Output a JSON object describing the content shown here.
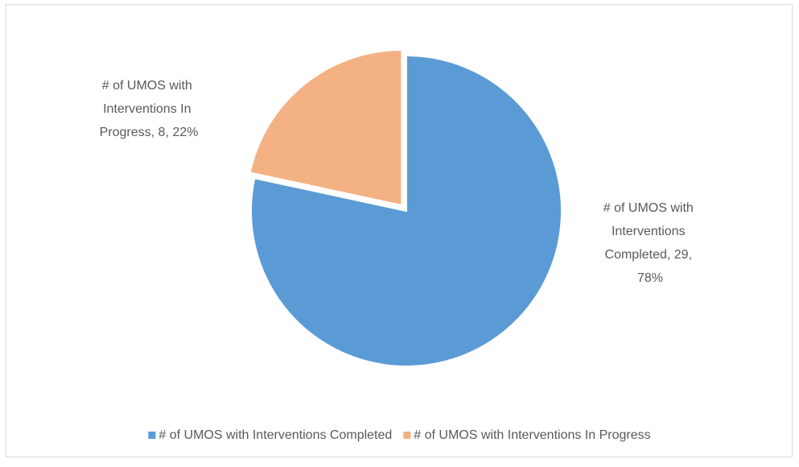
{
  "chart_data": {
    "type": "pie",
    "categories": [
      "# of UMOS with Interventions Completed",
      "# of UMOS with Interventions In Progress"
    ],
    "values": [
      29,
      8
    ],
    "value_labels": [
      "# of UMOS with Interventions Completed, 29, 78%",
      "# of UMOS with Interventions In Progress, 8, 22%"
    ],
    "colors": [
      "#5b9bd5",
      "#f4b183"
    ],
    "legend": "bottom"
  }
}
